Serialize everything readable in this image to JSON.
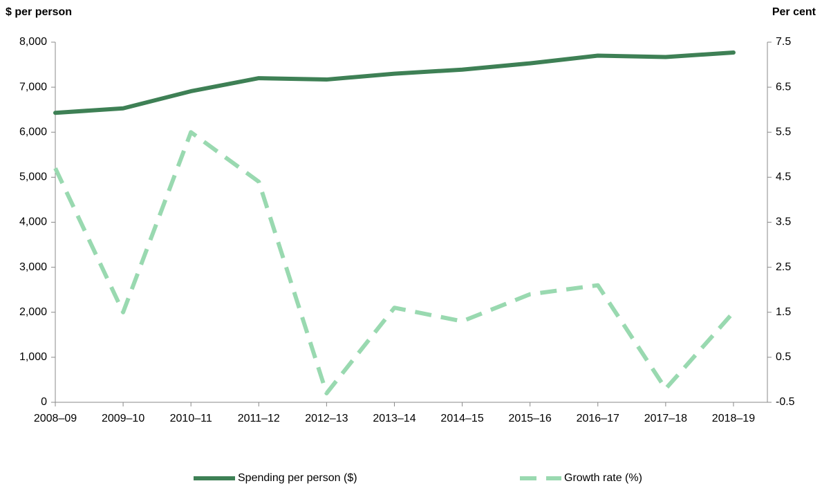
{
  "chart_data": {
    "type": "line",
    "y_axis_title": "$ per person",
    "y2_axis_title": "Per cent",
    "categories": [
      "2008–09",
      "2009–10",
      "2010–11",
      "2011–12",
      "2012–13",
      "2013–14",
      "2014–15",
      "2015–16",
      "2016–17",
      "2017–18",
      "2018–19"
    ],
    "series": [
      {
        "name": "Spending per person ($)",
        "color": "#3e8055",
        "dashed": false,
        "axis": "y",
        "values": [
          6430,
          6530,
          6910,
          7200,
          7170,
          7300,
          7390,
          7530,
          7700,
          7670,
          7770
        ]
      },
      {
        "name": "Growth rate (%)",
        "color": "#99d9b0",
        "dashed": true,
        "axis": "y2",
        "values": [
          4.7,
          1.5,
          5.5,
          4.4,
          -0.3,
          1.6,
          1.3,
          1.9,
          2.1,
          -0.2,
          1.5
        ]
      }
    ],
    "ylim": [
      0,
      8000
    ],
    "yticks": [
      0,
      {
        "value": 1000,
        "label": "1,000"
      },
      {
        "value": 2000,
        "label": "2,000"
      },
      {
        "value": 3000,
        "label": "3,000"
      },
      {
        "value": 4000,
        "label": "4,000"
      },
      {
        "value": 5000,
        "label": "5,000"
      },
      {
        "value": 6000,
        "label": "6,000"
      },
      {
        "value": 7000,
        "label": "7,000"
      },
      {
        "value": 8000,
        "label": "8,000"
      }
    ],
    "y2lim": [
      -0.5,
      7.5
    ],
    "y2ticks": [
      -0.5,
      0.5,
      1.5,
      2.5,
      3.5,
      4.5,
      5.5,
      6.5,
      7.5
    ],
    "grid": false,
    "legend": "bottom"
  }
}
